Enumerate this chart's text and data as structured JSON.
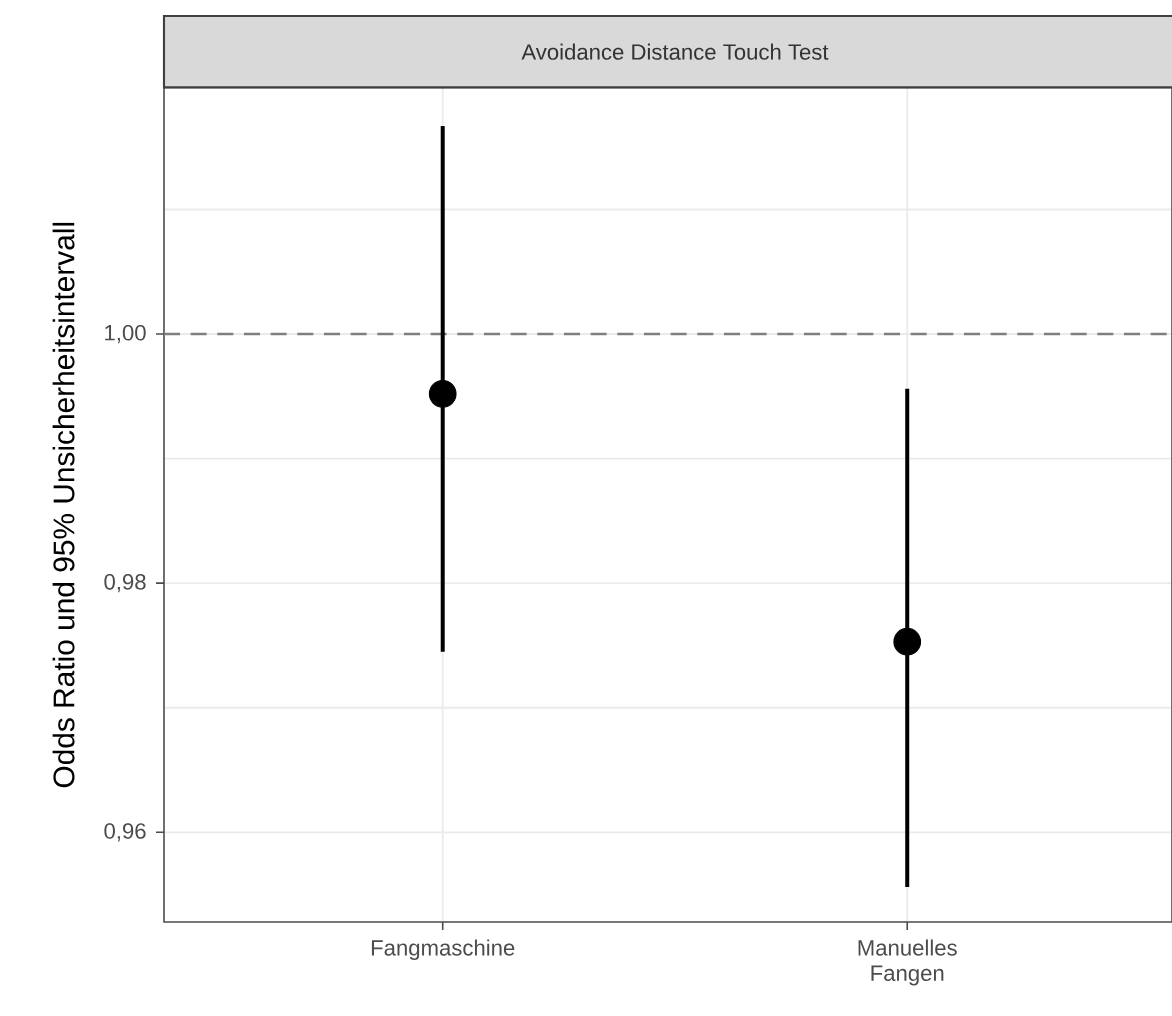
{
  "chart_data": {
    "type": "scatter",
    "title": "Avoidance Distance Touch Test",
    "ylabel": "Odds Ratio und 95% Unsicherheitsintervall",
    "categories": [
      "Fangmaschine",
      "Manuelles Fangen"
    ],
    "values": [
      0.9952,
      0.9753
    ],
    "errors": [
      [
        0.9745,
        1.0167
      ],
      [
        0.9556,
        0.9956
      ]
    ],
    "color": "#000000",
    "marker": "circle",
    "ylim": [
      0.9528,
      1.0198
    ],
    "yticks": [
      {
        "value": 0.96,
        "label": "0,96"
      },
      {
        "value": 0.97,
        "label": null
      },
      {
        "value": 0.98,
        "label": "0,98"
      },
      {
        "value": 0.99,
        "label": null
      },
      {
        "value": 1.0,
        "label": "1,00"
      },
      {
        "value": 1.01,
        "label": null
      }
    ],
    "ref_lines": [
      {
        "axis": "y",
        "value": 1.0,
        "color": "#7f7f7f",
        "line_style": "dashed"
      }
    ],
    "grid": true
  }
}
